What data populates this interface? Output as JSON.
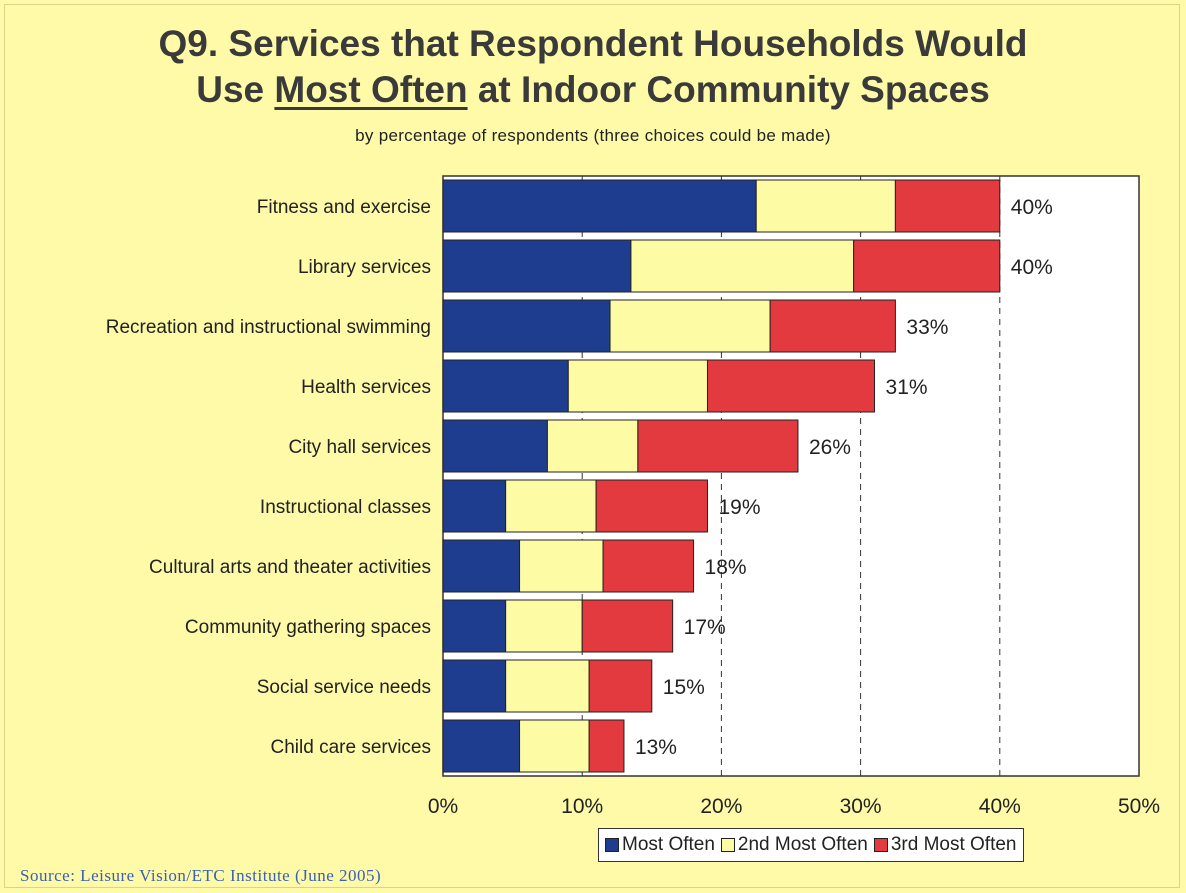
{
  "chart_data": {
    "type": "bar",
    "orientation": "horizontal",
    "stacked": true,
    "title_line1": "Q9.  Services that Respondent Households Would",
    "title_line2_prefix": "Use ",
    "title_line2_emphasis": "Most Often",
    "title_line2_suffix": "  at Indoor Community Spaces",
    "subtitle": "by percentage of respondents (three choices could be made)",
    "categories": [
      "Fitness and exercise",
      "Library services",
      "Recreation and instructional swimming",
      "Health services",
      "City hall services",
      "Instructional classes",
      "Cultural arts and theater activities",
      "Community gathering spaces",
      "Social service needs",
      "Child care services"
    ],
    "series": [
      {
        "name": "Most Often",
        "color": "#1f3d8f",
        "values": [
          22.5,
          13.5,
          12,
          9,
          7.5,
          4.5,
          5.5,
          4.5,
          4.5,
          5.5
        ]
      },
      {
        "name": "2nd Most Often",
        "color": "#fdfba3",
        "values": [
          10,
          16,
          11.5,
          10,
          6.5,
          6.5,
          6,
          5.5,
          6,
          5
        ]
      },
      {
        "name": "3rd Most Often",
        "color": "#e23a3e",
        "values": [
          7.5,
          10.5,
          9,
          12,
          11.5,
          8,
          6.5,
          6.5,
          4.5,
          2.5
        ]
      }
    ],
    "totals": [
      "40%",
      "40%",
      "33%",
      "31%",
      "26%",
      "19%",
      "18%",
      "17%",
      "15%",
      "13%"
    ],
    "xlim": [
      0,
      50
    ],
    "xticks": [
      0,
      10,
      20,
      30,
      40,
      50
    ],
    "xtick_labels": [
      "0%",
      "10%",
      "20%",
      "30%",
      "40%",
      "50%"
    ],
    "grid": "dashed vertical",
    "legend_position": "bottom-right",
    "source": "Source:  Leisure Vision/ETC Institute (June 2005)"
  }
}
